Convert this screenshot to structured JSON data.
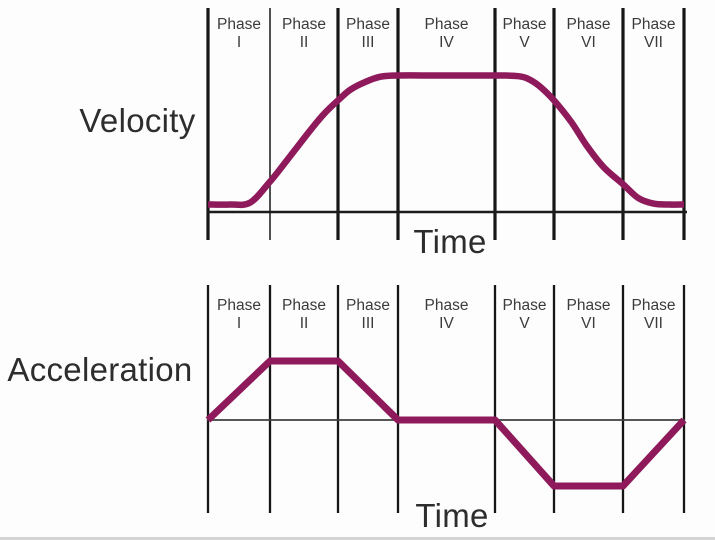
{
  "chart_data": [
    {
      "type": "line",
      "title": "Velocity",
      "xlabel": "Time",
      "categories": [
        "Phase I",
        "Phase II",
        "Phase III",
        "Phase IV",
        "Phase V",
        "Phase VI",
        "Phase VII"
      ],
      "x_axis_note": "time in phase units; Phase k spans x=[k-1,k], k=1..7",
      "ylim": [
        0,
        1
      ],
      "grid": "vertical phase boundary lines only",
      "legend": "none",
      "line_color": "#8e1a5c",
      "axis_color": "#1c1c1c",
      "series": [
        {
          "name": "velocity",
          "smooth": true,
          "x": [
            0,
            0.35,
            0.68,
            1.0,
            1.2,
            1.41,
            1.62,
            1.8,
            2.0,
            2.2,
            2.45,
            2.7,
            3.0,
            3.4,
            3.8,
            4.15,
            4.4,
            4.56,
            4.75,
            5.0,
            5.25,
            5.48,
            5.72,
            6.0,
            6.25,
            6.5,
            6.75,
            7.0
          ],
          "y": [
            0.015,
            0.015,
            0.03,
            0.19,
            0.32,
            0.46,
            0.6,
            0.71,
            0.81,
            0.89,
            0.95,
            0.99,
            1.0,
            1.0,
            1.0,
            1.0,
            0.995,
            0.975,
            0.92,
            0.81,
            0.645,
            0.46,
            0.3,
            0.17,
            0.065,
            0.022,
            0.015,
            0.015
          ]
        }
      ]
    },
    {
      "type": "line",
      "title": "Acceleration",
      "xlabel": "Time",
      "categories": [
        "Phase I",
        "Phase II",
        "Phase III",
        "Phase IV",
        "Phase V",
        "Phase VI",
        "Phase VII"
      ],
      "x_axis_note": "time in phase units; Phase k spans x=[k-1,k], k=1..7",
      "ylim": [
        -1,
        1
      ],
      "grid": "vertical phase boundary lines only",
      "legend": "none",
      "line_color": "#8e1a5c",
      "axis_color": "#3f3f3f",
      "series": [
        {
          "name": "acceleration",
          "smooth": false,
          "x": [
            0,
            1,
            2,
            3,
            4,
            5,
            6,
            7
          ],
          "y": [
            0,
            1,
            1,
            0,
            0,
            -1,
            -1,
            0
          ]
        }
      ]
    }
  ]
}
